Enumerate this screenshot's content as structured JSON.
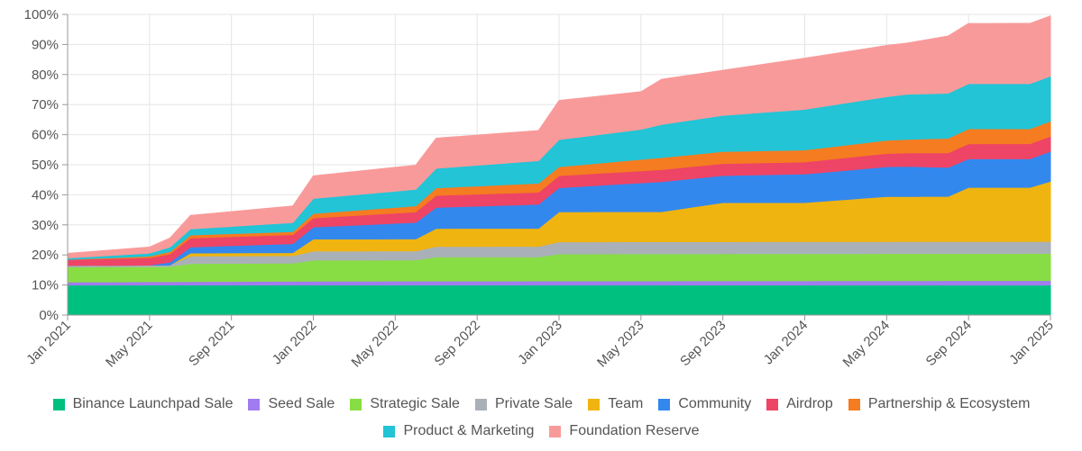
{
  "chart_data": {
    "type": "area",
    "stacked": true,
    "title": "",
    "xlabel": "",
    "ylabel": "",
    "ylim": [
      0,
      100
    ],
    "y_ticks": [
      0,
      10,
      20,
      30,
      40,
      50,
      60,
      70,
      80,
      90,
      100
    ],
    "y_tick_labels": [
      "0%",
      "10%",
      "20%",
      "30%",
      "40%",
      "50%",
      "60%",
      "70%",
      "80%",
      "90%",
      "100%"
    ],
    "x_range": [
      0,
      48
    ],
    "x_ticks": [
      0,
      4,
      8,
      12,
      16,
      20,
      24,
      28,
      32,
      36,
      40,
      44,
      48
    ],
    "x_tick_labels": [
      "Jan 2021",
      "May 2021",
      "Sep 2021",
      "Jan 2022",
      "May 2022",
      "Sep 2022",
      "Jan 2023",
      "May 2023",
      "Sep 2023",
      "Jan 2024",
      "May 2024",
      "Sep 2024",
      "Jan 2025"
    ],
    "grid": true,
    "legend_position": "bottom",
    "series": [
      {
        "name": "Binance Launchpad Sale",
        "color": "#00c080",
        "x": [
          0,
          48
        ],
        "values": [
          10,
          10
        ]
      },
      {
        "name": "Seed Sale",
        "color": "#a07cf0",
        "x": [
          0,
          12,
          48
        ],
        "values": [
          1,
          1.3,
          1.5
        ]
      },
      {
        "name": "Strategic Sale",
        "color": "#88dd44",
        "x": [
          0,
          2,
          4,
          5,
          6,
          8,
          10,
          11,
          12,
          16,
          17,
          18,
          20,
          23,
          24,
          48
        ],
        "values": [
          5,
          5,
          5,
          5,
          6,
          6,
          6,
          6,
          7,
          7,
          7,
          8,
          8,
          8,
          9,
          9
        ]
      },
      {
        "name": "Private Sale",
        "color": "#aab0b8",
        "x": [
          0,
          4,
          5,
          6,
          8,
          11,
          12,
          16,
          17,
          18,
          20,
          23,
          24,
          48
        ],
        "values": [
          0.5,
          0.5,
          0.5,
          2.5,
          2.5,
          2.5,
          3,
          3,
          3,
          3.5,
          3.5,
          3.5,
          4,
          4
        ]
      },
      {
        "name": "Team",
        "color": "#f0b410",
        "x": [
          0,
          5,
          6,
          11,
          12,
          17,
          18,
          23,
          24,
          28,
          29,
          32,
          36,
          40,
          41,
          43,
          44,
          47,
          48
        ],
        "values": [
          0,
          0,
          1,
          1,
          4,
          4,
          6,
          6,
          10,
          10,
          10,
          13,
          13,
          15,
          15,
          15,
          18,
          18,
          20
        ]
      },
      {
        "name": "Community",
        "color": "#3388ee",
        "x": [
          0,
          4,
          5,
          6,
          11,
          12,
          17,
          18,
          23,
          24,
          29,
          32,
          36,
          41,
          44,
          47,
          48
        ],
        "values": [
          0,
          0,
          1,
          2,
          3,
          4,
          5.5,
          7,
          8,
          8,
          10,
          9,
          9.5,
          10,
          9.5,
          9.5,
          10
        ]
      },
      {
        "name": "Airdrop",
        "color": "#ee4466",
        "x": [
          0,
          4,
          5,
          6,
          11,
          12,
          17,
          18,
          23,
          24,
          29,
          32,
          36,
          41,
          44,
          47,
          48
        ],
        "values": [
          2,
          2.5,
          2.7,
          3,
          3,
          3,
          3.5,
          4,
          4,
          4,
          4,
          4,
          4,
          4.5,
          5,
          5,
          5
        ]
      },
      {
        "name": "Partnership & Ecosystem",
        "color": "#f57c20",
        "x": [
          0,
          4,
          5,
          6,
          11,
          12,
          17,
          18,
          23,
          24,
          29,
          32,
          36,
          41,
          44,
          47,
          48
        ],
        "values": [
          0,
          0.5,
          0.8,
          1,
          1,
          1.5,
          2,
          2.5,
          3,
          3,
          4,
          4,
          4,
          4.5,
          5,
          5,
          5
        ]
      },
      {
        "name": "Product & Marketing",
        "color": "#22c4d6",
        "x": [
          0,
          4,
          5,
          6,
          11,
          12,
          17,
          18,
          23,
          24,
          28,
          29,
          32,
          36,
          40,
          41,
          44,
          47,
          48
        ],
        "values": [
          0.5,
          1,
          1.5,
          2,
          3,
          5,
          5.5,
          6.5,
          7.5,
          9,
          10,
          11,
          12,
          13.5,
          14.5,
          15,
          15,
          15,
          15
        ]
      },
      {
        "name": "Foundation Reserve",
        "color": "#f99a9a",
        "x": [
          0,
          4,
          5,
          6,
          11,
          12,
          17,
          18,
          23,
          24,
          28,
          29,
          32,
          36,
          40,
          41,
          44,
          47,
          48
        ],
        "values": [
          1.5,
          2,
          3,
          4.5,
          5.5,
          7.5,
          8,
          10,
          10,
          13,
          12.5,
          15,
          15,
          17,
          17,
          17,
          20,
          20,
          20
        ]
      }
    ]
  }
}
